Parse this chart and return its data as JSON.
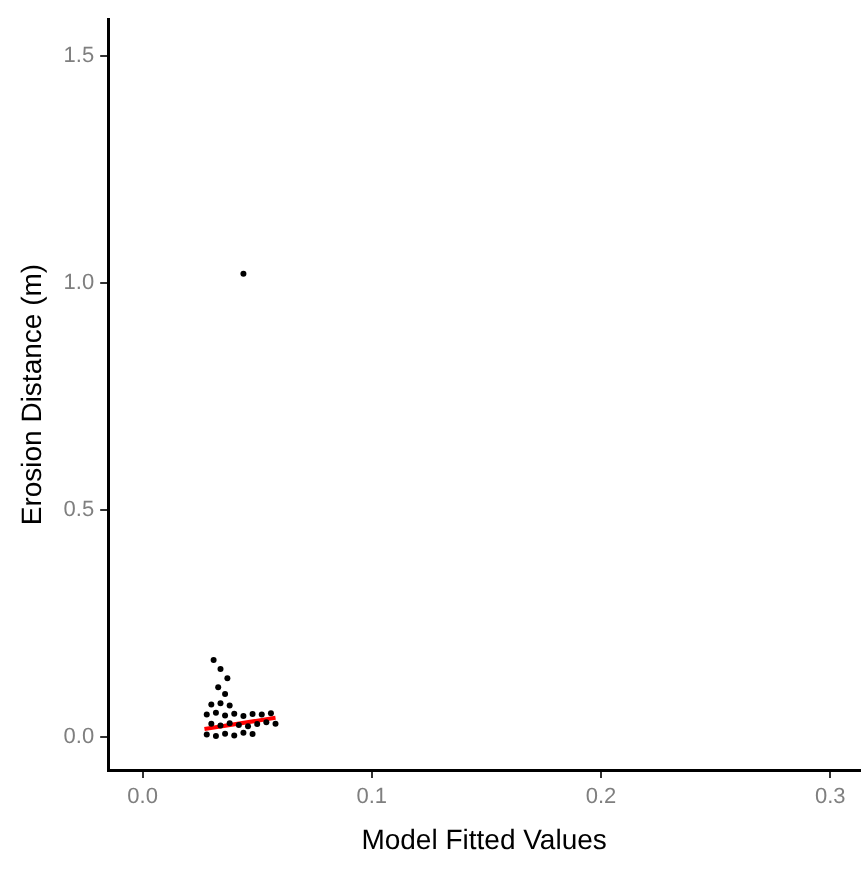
{
  "chart_data": {
    "type": "scatter",
    "xlabel": "Model Fitted Values",
    "ylabel": "Erosion Distance (m)",
    "xlim": [
      -0.015,
      0.313
    ],
    "ylim": [
      -0.072,
      1.58
    ],
    "xticks": [
      {
        "value": 0,
        "label": "0.0"
      },
      0.1,
      0.2,
      0.3
    ],
    "yticks": [
      {
        "value": 0,
        "label": "0.0"
      },
      0.5,
      {
        "value": 1,
        "label": "1.0"
      },
      1.5
    ],
    "grid": false,
    "legend": false,
    "marker": "circle",
    "series": [
      {
        "color": "#000000",
        "x": [
          0.044,
          0.031,
          0.034,
          0.037,
          0.033,
          0.036,
          0.028,
          0.032,
          0.036,
          0.04,
          0.044,
          0.048,
          0.03,
          0.034,
          0.038,
          0.042,
          0.046,
          0.05,
          0.054,
          0.058,
          0.028,
          0.032,
          0.036,
          0.04,
          0.044,
          0.048,
          0.052,
          0.056,
          0.03,
          0.034,
          0.038
        ],
        "values": [
          1.02,
          0.17,
          0.15,
          0.13,
          0.11,
          0.095,
          0.006,
          0.003,
          0.008,
          0.004,
          0.01,
          0.007,
          0.03,
          0.026,
          0.031,
          0.027,
          0.024,
          0.029,
          0.033,
          0.03,
          0.05,
          0.054,
          0.048,
          0.052,
          0.047,
          0.051,
          0.05,
          0.053,
          0.072,
          0.075,
          0.07
        ]
      },
      {
        "type": "line",
        "marker": "none",
        "color": "#ff0000",
        "x": [
          0.027,
          0.058
        ],
        "values": [
          0.018,
          0.043
        ]
      }
    ]
  }
}
